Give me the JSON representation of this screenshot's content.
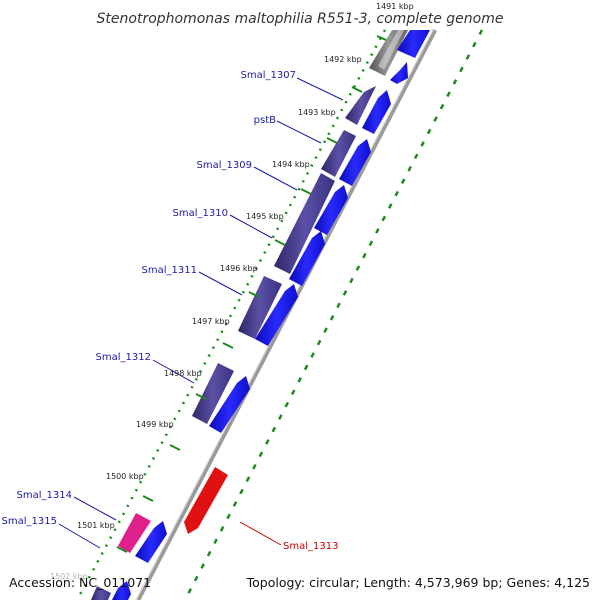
{
  "title": "Stenotrophomonas maltophilia R551-3, complete genome",
  "footer": {
    "accession": "Accession: NC_011071",
    "topology": "Topology: circular; Length: 4,573,969 bp; Genes: 4,125"
  },
  "ticks": [
    {
      "label": "1491 kbp"
    },
    {
      "label": "1492 kbp"
    },
    {
      "label": "1493 kbp"
    },
    {
      "label": "1494 kbp"
    },
    {
      "label": "1495 kbp"
    },
    {
      "label": "1496 kbp"
    },
    {
      "label": "1497 kbp"
    },
    {
      "label": "1498 kbp"
    },
    {
      "label": "1499 kbp"
    },
    {
      "label": "1500 kbp"
    },
    {
      "label": "1501 kbp"
    },
    {
      "label": "1502 kbp"
    }
  ],
  "genes": [
    {
      "label": "Smal_1307"
    },
    {
      "label": "pstB"
    },
    {
      "label": "Smal_1309"
    },
    {
      "label": "Smal_1310"
    },
    {
      "label": "Smal_1311"
    },
    {
      "label": "Smal_1312"
    },
    {
      "label": "Smal_1314"
    },
    {
      "label": "Smal_1315"
    },
    {
      "label": "Smal_1313"
    }
  ],
  "colors": {
    "cds_forward": "#1a1aee",
    "cds_outer": "#4a3f8c",
    "cds_outer_highlight": "#e0208a",
    "cds_reverse": "#ee1111",
    "backbone": "#8a8a8a",
    "gc_dots": "#1a8a1a",
    "label_blue": "#1a1aa8",
    "label_red": "#cc0000"
  }
}
